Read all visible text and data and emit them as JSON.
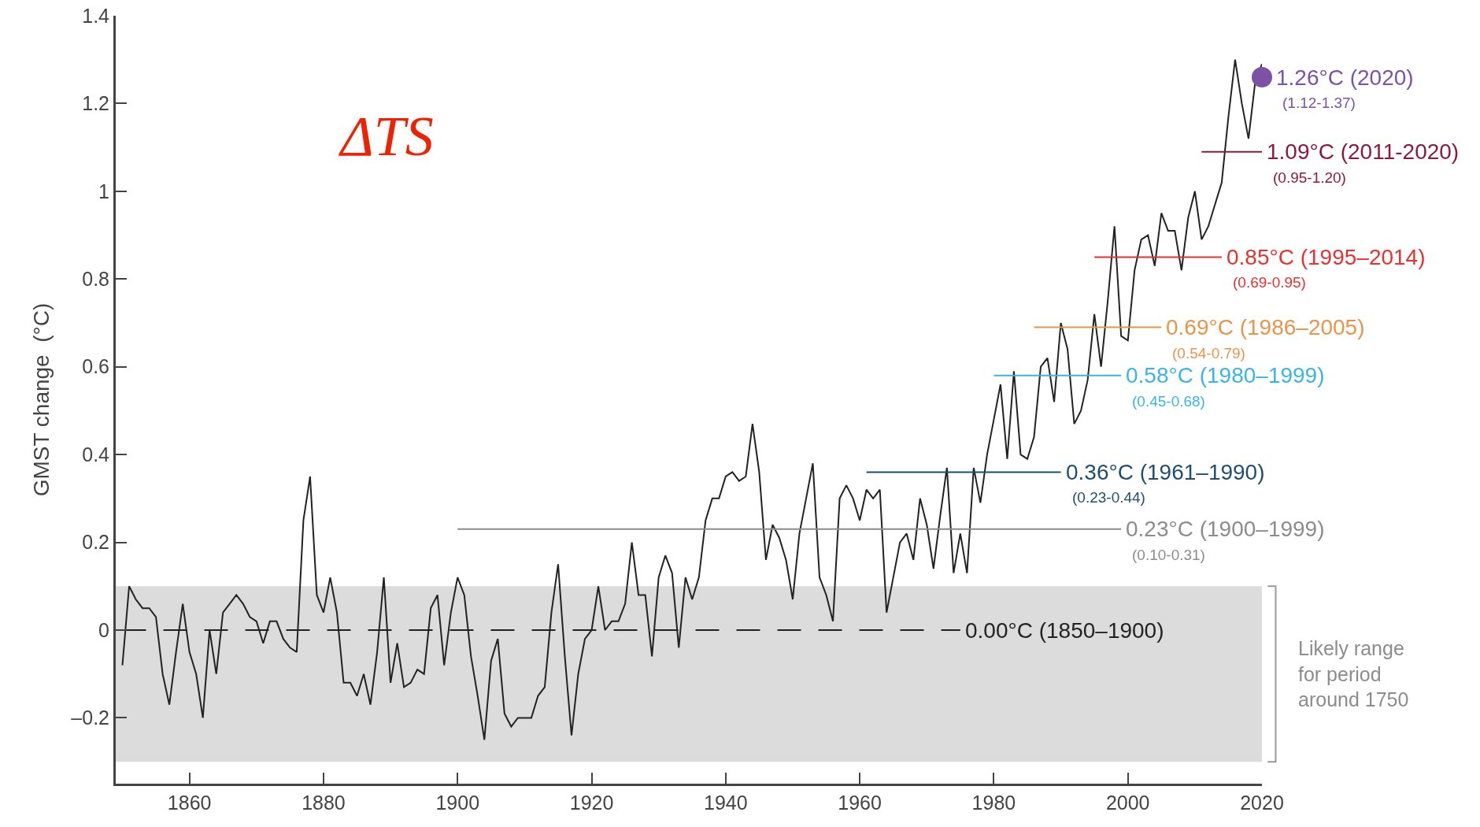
{
  "chart_data": {
    "type": "line",
    "title": "ΔTS",
    "ylabel": "GMST change  (°C)",
    "x": [
      1850,
      1851,
      1852,
      1853,
      1854,
      1855,
      1856,
      1857,
      1858,
      1859,
      1860,
      1861,
      1862,
      1863,
      1864,
      1865,
      1866,
      1867,
      1868,
      1869,
      1870,
      1871,
      1872,
      1873,
      1874,
      1875,
      1876,
      1877,
      1878,
      1879,
      1880,
      1881,
      1882,
      1883,
      1884,
      1885,
      1886,
      1887,
      1888,
      1889,
      1890,
      1891,
      1892,
      1893,
      1894,
      1895,
      1896,
      1897,
      1898,
      1899,
      1900,
      1901,
      1902,
      1903,
      1904,
      1905,
      1906,
      1907,
      1908,
      1909,
      1910,
      1911,
      1912,
      1913,
      1914,
      1915,
      1916,
      1917,
      1918,
      1919,
      1920,
      1921,
      1922,
      1923,
      1924,
      1925,
      1926,
      1927,
      1928,
      1929,
      1930,
      1931,
      1932,
      1933,
      1934,
      1935,
      1936,
      1937,
      1938,
      1939,
      1940,
      1941,
      1942,
      1943,
      1944,
      1945,
      1946,
      1947,
      1948,
      1949,
      1950,
      1951,
      1952,
      1953,
      1954,
      1955,
      1956,
      1957,
      1958,
      1959,
      1960,
      1961,
      1962,
      1963,
      1964,
      1965,
      1966,
      1967,
      1968,
      1969,
      1970,
      1971,
      1972,
      1973,
      1974,
      1975,
      1976,
      1977,
      1978,
      1979,
      1980,
      1981,
      1982,
      1983,
      1984,
      1985,
      1986,
      1987,
      1988,
      1989,
      1990,
      1991,
      1992,
      1993,
      1994,
      1995,
      1996,
      1997,
      1998,
      1999,
      2000,
      2001,
      2002,
      2003,
      2004,
      2005,
      2006,
      2007,
      2008,
      2009,
      2010,
      2011,
      2012,
      2013,
      2014,
      2015,
      2016,
      2017,
      2018,
      2019,
      2020
    ],
    "series": [
      {
        "color": "#222222",
        "values": [
          -0.08,
          0.1,
          0.07,
          0.05,
          0.05,
          0.03,
          -0.1,
          -0.17,
          -0.05,
          0.06,
          -0.05,
          -0.1,
          -0.2,
          0.0,
          -0.1,
          0.04,
          0.06,
          0.08,
          0.06,
          0.03,
          0.02,
          -0.03,
          0.02,
          0.02,
          -0.02,
          -0.04,
          -0.05,
          0.25,
          0.35,
          0.08,
          0.04,
          0.12,
          0.04,
          -0.12,
          -0.12,
          -0.15,
          -0.1,
          -0.17,
          -0.05,
          0.12,
          -0.12,
          -0.03,
          -0.13,
          -0.12,
          -0.09,
          -0.1,
          0.05,
          0.08,
          -0.08,
          0.04,
          0.12,
          0.08,
          -0.06,
          -0.15,
          -0.25,
          -0.07,
          -0.02,
          -0.19,
          -0.22,
          -0.2,
          -0.2,
          -0.2,
          -0.15,
          -0.13,
          0.04,
          0.15,
          -0.06,
          -0.24,
          -0.1,
          -0.02,
          0.0,
          0.1,
          0.0,
          0.02,
          0.02,
          0.06,
          0.2,
          0.08,
          0.08,
          -0.06,
          0.12,
          0.17,
          0.13,
          -0.04,
          0.12,
          0.07,
          0.12,
          0.25,
          0.3,
          0.3,
          0.35,
          0.36,
          0.34,
          0.35,
          0.47,
          0.36,
          0.16,
          0.24,
          0.21,
          0.16,
          0.07,
          0.22,
          0.3,
          0.38,
          0.12,
          0.08,
          0.02,
          0.3,
          0.33,
          0.3,
          0.25,
          0.32,
          0.3,
          0.32,
          0.04,
          0.12,
          0.2,
          0.22,
          0.16,
          0.3,
          0.24,
          0.14,
          0.26,
          0.37,
          0.13,
          0.22,
          0.13,
          0.37,
          0.29,
          0.4,
          0.48,
          0.56,
          0.39,
          0.59,
          0.4,
          0.39,
          0.44,
          0.6,
          0.62,
          0.52,
          0.7,
          0.64,
          0.47,
          0.5,
          0.57,
          0.72,
          0.6,
          0.75,
          0.92,
          0.67,
          0.66,
          0.82,
          0.89,
          0.9,
          0.83,
          0.95,
          0.91,
          0.91,
          0.82,
          0.94,
          1.0,
          0.89,
          0.92,
          0.97,
          1.02,
          1.17,
          1.3,
          1.2,
          1.12,
          1.25,
          1.29
        ]
      },
      {
        "type": "line",
        "name": "0.00°C (1850–1900)",
        "color": "#222222",
        "line_style": "dashed",
        "x": [
          1850,
          1975
        ],
        "values": [
          0.0,
          0.0
        ]
      },
      {
        "type": "line",
        "name": "0.23°C (1900–1999)",
        "color": "#8c8c8c",
        "x": [
          1900,
          1999
        ],
        "values": [
          0.23,
          0.23
        ]
      },
      {
        "type": "line",
        "name": "0.36°C (1961–1990)",
        "color": "#1f4e6e",
        "x": [
          1961,
          1990
        ],
        "values": [
          0.36,
          0.36
        ]
      },
      {
        "type": "line",
        "name": "0.58°C (1980–1999)",
        "color": "#3ab4e6",
        "x": [
          1980,
          1999
        ],
        "values": [
          0.58,
          0.58
        ]
      },
      {
        "type": "line",
        "name": "0.69°C (1986–2005)",
        "color": "#e8954a",
        "x": [
          1986,
          2005
        ],
        "values": [
          0.69,
          0.69
        ]
      },
      {
        "type": "line",
        "name": "0.85°C (1995–2014)",
        "color": "#e8312f",
        "x": [
          1995,
          2014
        ],
        "values": [
          0.85,
          0.85
        ]
      },
      {
        "type": "line",
        "name": "1.09°C (2011-2020)",
        "color": "#8b1a3a",
        "x": [
          2011,
          2020
        ],
        "values": [
          1.09,
          1.09
        ]
      },
      {
        "type": "scatter",
        "name": "1.26°C (2020)",
        "color": "#7b52a6",
        "marker": "circle",
        "x": [
          2020
        ],
        "values": [
          1.26
        ]
      }
    ],
    "annotations": [
      "(0.10-0.31)",
      "(0.23-0.44)",
      "(0.45-0.68)",
      "(0.54-0.79)",
      "(0.69-0.95)",
      "(0.95-1.20)",
      "(1.12-1.37)"
    ],
    "bands": [
      {
        "axis": "y",
        "from": -0.3,
        "to": 0.1,
        "label": "Likely range for period around 1750",
        "color": "#dcdcdc"
      }
    ],
    "xlim": [
      1849,
      2020
    ],
    "xticks": [
      1860,
      1880,
      1900,
      1920,
      1940,
      1960,
      1980,
      2000,
      2020
    ],
    "ylim": [
      -0.35,
      1.4
    ],
    "yticks": [
      {
        "value": -0.2,
        "label": "–0.2"
      },
      0,
      0.2,
      0.4,
      0.6,
      0.8,
      1,
      1.2,
      1.4
    ],
    "grid": false,
    "legend": false
  }
}
